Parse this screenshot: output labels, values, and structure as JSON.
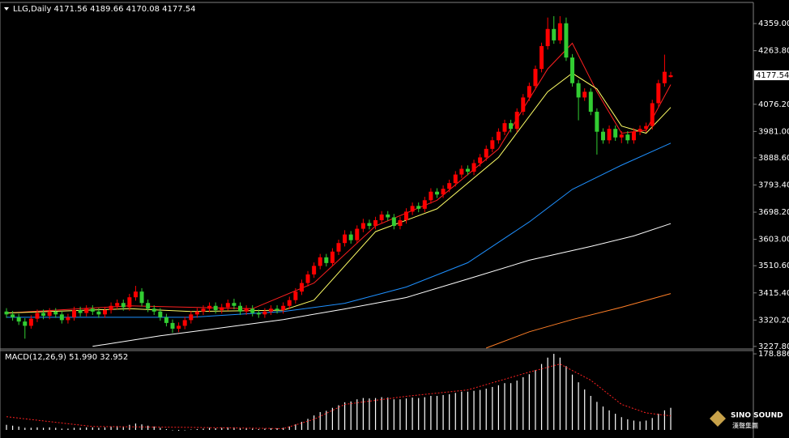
{
  "chart_data": [
    {
      "type": "candlestick",
      "title": "LLG,Daily  4171.56 4189.66 4170.08 4177.54",
      "up_color": "#ff0000",
      "down_color": "#32cd32",
      "open": [
        3350,
        3340,
        3330,
        3315,
        3300,
        3325,
        3345,
        3335,
        3350,
        3340,
        3320,
        3330,
        3355,
        3345,
        3360,
        3350,
        3340,
        3355,
        3370,
        3380,
        3365,
        3400,
        3420,
        3380,
        3360,
        3350,
        3330,
        3310,
        3290,
        3300,
        3320,
        3340,
        3350,
        3360,
        3370,
        3355,
        3365,
        3380,
        3370,
        3350,
        3360,
        3345,
        3340,
        3350,
        3360,
        3355,
        3370,
        3390,
        3420,
        3450,
        3480,
        3510,
        3540,
        3520,
        3560,
        3590,
        3620,
        3600,
        3640,
        3660,
        3650,
        3670,
        3690,
        3680,
        3650,
        3670,
        3700,
        3720,
        3710,
        3740,
        3770,
        3760,
        3780,
        3800,
        3830,
        3850,
        3840,
        3870,
        3890,
        3920,
        3950,
        3980,
        4010,
        3990,
        4050,
        4100,
        4140,
        4200,
        4280,
        4340,
        4300,
        4360,
        4240,
        4150,
        4100,
        4120,
        4050,
        3980,
        3950,
        3990,
        3960,
        3970,
        3950,
        3980,
        3990,
        4000,
        4080,
        4150,
        4171.56
      ],
      "high": [
        3362,
        3352,
        3342,
        3327,
        3337,
        3357,
        3357,
        3362,
        3362,
        3352,
        3342,
        3367,
        3367,
        3372,
        3372,
        3362,
        3367,
        3382,
        3392,
        3392,
        3412,
        3440,
        3432,
        3392,
        3372,
        3362,
        3342,
        3322,
        3312,
        3332,
        3352,
        3362,
        3372,
        3382,
        3382,
        3377,
        3392,
        3395,
        3382,
        3372,
        3372,
        3357,
        3362,
        3372,
        3372,
        3382,
        3402,
        3432,
        3462,
        3492,
        3522,
        3552,
        3552,
        3572,
        3602,
        3635,
        3632,
        3652,
        3675,
        3672,
        3682,
        3702,
        3702,
        3692,
        3682,
        3712,
        3732,
        3732,
        3752,
        3782,
        3782,
        3792,
        3812,
        3842,
        3862,
        3862,
        3882,
        3902,
        3932,
        3962,
        3992,
        4022,
        4022,
        4062,
        4112,
        4152,
        4212,
        4292,
        4380,
        4385,
        4385,
        4380,
        4252,
        4162,
        4132,
        4132,
        4062,
        3992,
        4002,
        4002,
        3982,
        3982,
        3992,
        4002,
        4012,
        4092,
        4162,
        4250,
        4189.66
      ],
      "low": [
        3328,
        3318,
        3303,
        3255,
        3290,
        3313,
        3323,
        3323,
        3328,
        3308,
        3308,
        3318,
        3333,
        3333,
        3338,
        3328,
        3328,
        3343,
        3358,
        3353,
        3353,
        3388,
        3368,
        3348,
        3338,
        3318,
        3298,
        3275,
        3278,
        3288,
        3308,
        3328,
        3338,
        3348,
        3343,
        3343,
        3353,
        3358,
        3338,
        3338,
        3333,
        3328,
        3328,
        3338,
        3343,
        3343,
        3358,
        3378,
        3408,
        3438,
        3468,
        3498,
        3508,
        3508,
        3548,
        3578,
        3588,
        3588,
        3628,
        3638,
        3638,
        3658,
        3668,
        3638,
        3638,
        3658,
        3688,
        3698,
        3698,
        3728,
        3748,
        3748,
        3768,
        3788,
        3818,
        3828,
        3828,
        3858,
        3878,
        3908,
        3938,
        3968,
        3978,
        3978,
        4038,
        4088,
        4128,
        4188,
        4268,
        4288,
        4288,
        4228,
        4138,
        4020,
        4088,
        4038,
        3900,
        3938,
        3938,
        3948,
        3940,
        3938,
        3938,
        3968,
        3978,
        3988,
        4068,
        4138,
        4170.08
      ],
      "close": [
        3340,
        3330,
        3315,
        3300,
        3325,
        3345,
        3335,
        3350,
        3340,
        3320,
        3330,
        3355,
        3345,
        3360,
        3350,
        3340,
        3355,
        3370,
        3380,
        3365,
        3400,
        3420,
        3380,
        3360,
        3350,
        3330,
        3310,
        3290,
        3300,
        3320,
        3340,
        3350,
        3360,
        3370,
        3355,
        3365,
        3380,
        3370,
        3350,
        3360,
        3345,
        3340,
        3350,
        3360,
        3355,
        3370,
        3390,
        3420,
        3450,
        3480,
        3510,
        3540,
        3520,
        3560,
        3590,
        3620,
        3600,
        3640,
        3660,
        3650,
        3670,
        3690,
        3680,
        3650,
        3670,
        3700,
        3720,
        3710,
        3740,
        3770,
        3760,
        3780,
        3800,
        3830,
        3850,
        3840,
        3870,
        3890,
        3920,
        3950,
        3980,
        4010,
        3990,
        4050,
        4100,
        4140,
        4200,
        4280,
        4340,
        4300,
        4360,
        4240,
        4150,
        4100,
        4120,
        4050,
        3980,
        3950,
        3990,
        3960,
        3970,
        3950,
        3980,
        3990,
        4000,
        4080,
        4150,
        4190,
        4177.54
      ],
      "overlays": [
        {
          "color": "#ff2020",
          "x": [
            0,
            20,
            40,
            50,
            60,
            70,
            80,
            88,
            92,
            96,
            100,
            104,
            108
          ],
          "values": [
            3345,
            3370,
            3360,
            3450,
            3650,
            3740,
            3920,
            4200,
            4290,
            4120,
            3975,
            3985,
            4145
          ]
        },
        {
          "color": "#ffff66",
          "x": [
            0,
            20,
            30,
            45,
            50,
            60,
            70,
            80,
            88,
            92,
            96,
            100,
            104,
            108
          ],
          "values": [
            3345,
            3360,
            3350,
            3355,
            3390,
            3630,
            3710,
            3890,
            4120,
            4185,
            4130,
            4000,
            3975,
            4065
          ]
        },
        {
          "color": "#1e90ff",
          "x": [
            0,
            30,
            45,
            55,
            65,
            75,
            85,
            92,
            100,
            108
          ],
          "values": [
            3330,
            3330,
            3350,
            3379,
            3436,
            3521,
            3664,
            3778,
            3863,
            3940
          ]
        },
        {
          "color": "#ffffff",
          "x": [
            14,
            25,
            35,
            45,
            55,
            65,
            75,
            85,
            95,
            102,
            108
          ],
          "values": [
            3228,
            3265,
            3293,
            3322,
            3359,
            3399,
            3464,
            3530,
            3578,
            3615,
            3658
          ]
        },
        {
          "color": "#ff7f27",
          "x": [
            78,
            85,
            92,
            100,
            108
          ],
          "values": [
            3222,
            3279,
            3322,
            3365,
            3413
          ]
        }
      ],
      "ylim": [
        3219,
        4433
      ],
      "yticks": [
        {
          "value": 4359,
          "label": "4359.00"
        },
        {
          "value": 4263.8,
          "label": "4263.80"
        },
        {
          "value": 4076.2,
          "label": "4076.20"
        },
        {
          "value": 3981,
          "label": "3981.00"
        },
        {
          "value": 3888.6,
          "label": "3888.60"
        },
        {
          "value": 3793.4,
          "label": "3793.40"
        },
        {
          "value": 3698.2,
          "label": "3698.20"
        },
        {
          "value": 3603,
          "label": "3603.00"
        },
        {
          "value": 3510.6,
          "label": "3510.60"
        },
        {
          "value": 3415.4,
          "label": "3415.40"
        },
        {
          "value": 3320.2,
          "label": "3320.20"
        },
        {
          "value": 3227.8,
          "label": "3227.80"
        }
      ],
      "last_price": {
        "value": 4177.54,
        "label": "4177.54"
      }
    },
    {
      "type": "macd",
      "title": "MACD(12,26,9) 51.990 32.952",
      "color": "#ffffff",
      "values": [
        12,
        10,
        8,
        5,
        5,
        6,
        5,
        6,
        5,
        3,
        3,
        5,
        5,
        6,
        6,
        5,
        6,
        8,
        9,
        8,
        12,
        15,
        13,
        10,
        8,
        5,
        2,
        -1,
        -2,
        -1,
        1,
        2,
        3,
        5,
        4,
        5,
        6,
        6,
        4,
        4,
        3,
        2,
        3,
        4,
        4,
        5,
        8,
        13,
        19,
        26,
        34,
        42,
        45,
        52,
        58,
        65,
        67,
        72,
        75,
        74,
        75,
        77,
        76,
        72,
        72,
        74,
        76,
        75,
        77,
        80,
        80,
        82,
        84,
        87,
        90,
        90,
        92,
        94,
        97,
        101,
        105,
        110,
        110,
        116,
        124,
        131,
        141,
        155,
        170,
        178.886,
        170,
        150,
        130,
        112,
        95,
        80,
        66,
        55,
        46,
        38,
        30,
        25,
        22,
        20,
        22,
        28,
        38,
        46,
        51.99
      ],
      "signal": {
        "color": "#ff2020",
        "x": [
          0,
          14,
          30,
          45,
          50,
          55,
          65,
          75,
          85,
          90,
          95,
          100,
          104,
          108
        ],
        "values": [
          31,
          8,
          6,
          3,
          25,
          60,
          79,
          94,
          136,
          155,
          117,
          60,
          40,
          32.952
        ]
      },
      "ylim": [
        -19,
        186.6
      ],
      "yticks": [
        {
          "value": 178.886,
          "label": "178.886"
        }
      ]
    }
  ],
  "watermark": {
    "brand": "SINO SOUND",
    "brand_cn": "漢聲集團"
  }
}
